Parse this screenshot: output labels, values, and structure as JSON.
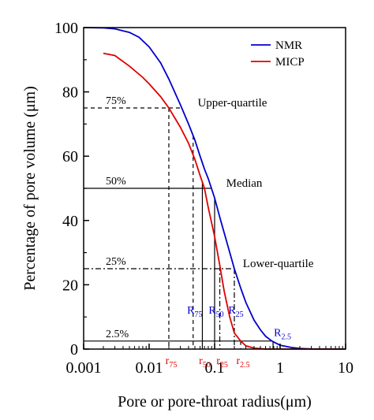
{
  "chart_data": {
    "type": "line",
    "title": "",
    "xlabel": "Pore or pore-throat radius(μm)",
    "ylabel": "Percentage of pore volume (μm)",
    "xscale": "log",
    "xlim": [
      0.001,
      10
    ],
    "ylim": [
      0,
      100
    ],
    "x_ticks": [
      0.001,
      0.01,
      0.1,
      1,
      10
    ],
    "x_tick_labels": [
      "0.001",
      "0.01",
      "0.1",
      "1",
      "10"
    ],
    "y_ticks": [
      0,
      20,
      40,
      60,
      80,
      100
    ],
    "y_tick_labels": [
      "0",
      "20",
      "40",
      "60",
      "80",
      "100"
    ],
    "grid": false,
    "legend_position": "top-right",
    "series": [
      {
        "name": "NMR",
        "color": "#0000cc",
        "points": [
          [
            0.001,
            100
          ],
          [
            0.002,
            99.9
          ],
          [
            0.003,
            99.6
          ],
          [
            0.005,
            98.5
          ],
          [
            0.007,
            97
          ],
          [
            0.01,
            94
          ],
          [
            0.015,
            89
          ],
          [
            0.02,
            84
          ],
          [
            0.03,
            76
          ],
          [
            0.04,
            70
          ],
          [
            0.05,
            65
          ],
          [
            0.06,
            60
          ],
          [
            0.07,
            56
          ],
          [
            0.08,
            53
          ],
          [
            0.1,
            47
          ],
          [
            0.12,
            41
          ],
          [
            0.15,
            34
          ],
          [
            0.2,
            25
          ],
          [
            0.25,
            19
          ],
          [
            0.3,
            14.5
          ],
          [
            0.4,
            9
          ],
          [
            0.5,
            6
          ],
          [
            0.6,
            4
          ],
          [
            0.75,
            2.5
          ],
          [
            1,
            1.2
          ],
          [
            1.5,
            0.5
          ],
          [
            2,
            0.2
          ],
          [
            3,
            0.05
          ],
          [
            5,
            0
          ],
          [
            10,
            0
          ]
        ]
      },
      {
        "name": "MICP",
        "color": "#e00000",
        "points": [
          [
            0.002,
            92
          ],
          [
            0.003,
            91.3
          ],
          [
            0.005,
            88
          ],
          [
            0.008,
            84.5
          ],
          [
            0.01,
            82.5
          ],
          [
            0.015,
            78.5
          ],
          [
            0.02,
            75
          ],
          [
            0.03,
            69
          ],
          [
            0.04,
            64
          ],
          [
            0.05,
            59
          ],
          [
            0.06,
            54
          ],
          [
            0.07,
            50
          ],
          [
            0.08,
            44
          ],
          [
            0.1,
            35
          ],
          [
            0.12,
            26
          ],
          [
            0.14,
            18
          ],
          [
            0.17,
            10
          ],
          [
            0.2,
            5
          ],
          [
            0.25,
            2.5
          ],
          [
            0.3,
            1
          ],
          [
            0.4,
            0.3
          ],
          [
            0.6,
            0
          ],
          [
            1,
            0
          ],
          [
            10,
            0
          ]
        ]
      }
    ],
    "reference_lines": [
      {
        "y": 75,
        "label": "75%",
        "style": "dashed"
      },
      {
        "y": 50,
        "label": "50%",
        "style": "solid"
      },
      {
        "y": 25,
        "label": "25%",
        "style": "dashdot"
      },
      {
        "y": 2.5,
        "label": "2.5%",
        "style": "solid"
      }
    ],
    "annotations": [
      {
        "text": "Upper-quartile",
        "x": 0.055,
        "y": 75
      },
      {
        "text": "Median",
        "x": 0.15,
        "y": 50
      },
      {
        "text": "Lower-quartile",
        "x": 0.27,
        "y": 25
      }
    ],
    "markers": [
      {
        "main": "r",
        "sub": "75",
        "x": 0.02,
        "color": "#e00000",
        "kind": "micp"
      },
      {
        "main": "r",
        "sub": "50",
        "x": 0.065,
        "color": "#e00000",
        "kind": "micp"
      },
      {
        "main": "r",
        "sub": "25",
        "x": 0.12,
        "color": "#e00000",
        "kind": "micp"
      },
      {
        "main": "r",
        "sub": "2.5",
        "x": 0.25,
        "color": "#e00000",
        "kind": "micp"
      },
      {
        "main": "R",
        "sub": "75",
        "x": 0.047,
        "color": "#0000cc",
        "kind": "nmr"
      },
      {
        "main": "R",
        "sub": "50",
        "x": 0.1,
        "color": "#0000cc",
        "kind": "nmr"
      },
      {
        "main": "R",
        "sub": "25",
        "x": 0.2,
        "color": "#0000cc",
        "kind": "nmr"
      },
      {
        "main": "R",
        "sub": "2.5",
        "x": 0.78,
        "color": "#0000cc",
        "kind": "nmr"
      }
    ]
  }
}
